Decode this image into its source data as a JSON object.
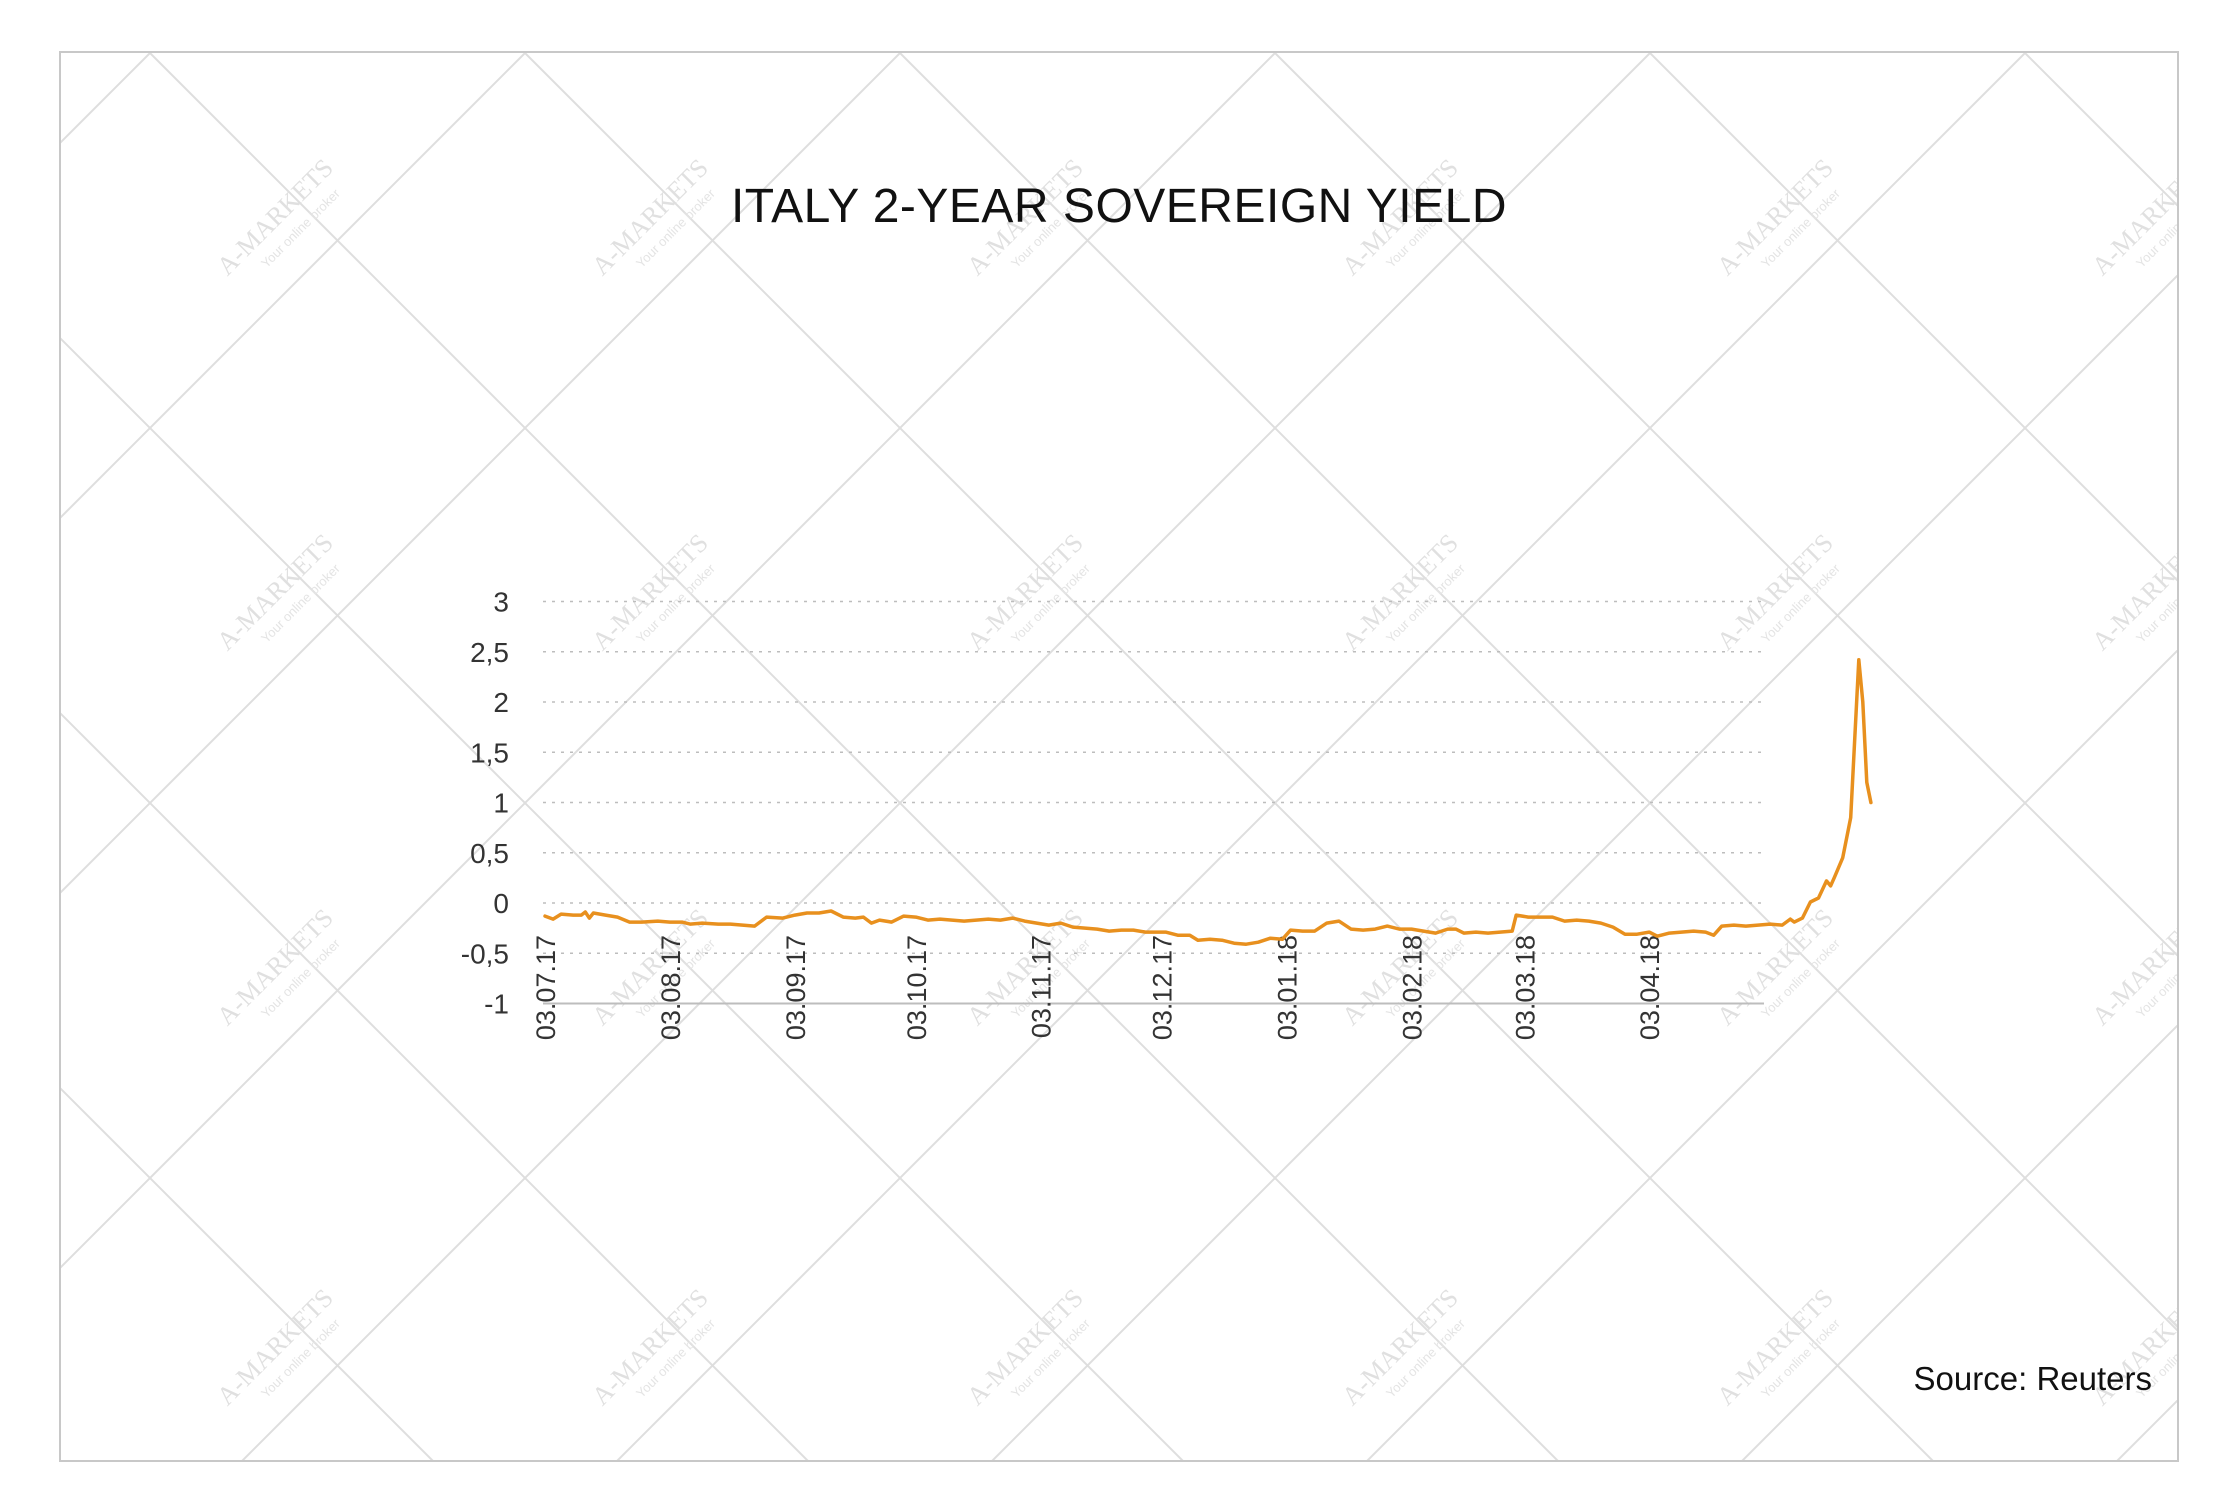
{
  "chart_data": {
    "type": "line",
    "title": "ITALY 2-YEAR SOVEREIGN YIELD",
    "xlabel": "",
    "ylabel": "",
    "ylim": [
      -1,
      3
    ],
    "y_ticks": [
      "3",
      "2,5",
      "2",
      "1,5",
      "1",
      "0,5",
      "0",
      "-0,5",
      "-1"
    ],
    "x_tick_labels": [
      "03.07.17",
      "03.08.17",
      "03.09.17",
      "03.10.17",
      "03.11.17",
      "03.12.17",
      "03.01.18",
      "03.02.18",
      "03.03.18",
      "03.04.18"
    ],
    "grid": true,
    "legend": "none",
    "series_color": "#E8901E",
    "series": [
      {
        "values": [
          [
            "2017-07-03",
            -0.13
          ],
          [
            "2017-07-05",
            -0.16
          ],
          [
            "2017-07-07",
            -0.11
          ],
          [
            "2017-07-10",
            -0.12
          ],
          [
            "2017-07-12",
            -0.12
          ],
          [
            "2017-07-13",
            -0.09
          ],
          [
            "2017-07-14",
            -0.15
          ],
          [
            "2017-07-15",
            -0.1
          ],
          [
            "2017-07-18",
            -0.12
          ],
          [
            "2017-07-21",
            -0.14
          ],
          [
            "2017-07-24",
            -0.19
          ],
          [
            "2017-07-27",
            -0.19
          ],
          [
            "2017-07-31",
            -0.18
          ],
          [
            "2017-08-03",
            -0.19
          ],
          [
            "2017-08-06",
            -0.19
          ],
          [
            "2017-08-08",
            -0.21
          ],
          [
            "2017-08-11",
            -0.2
          ],
          [
            "2017-08-15",
            -0.21
          ],
          [
            "2017-08-18",
            -0.21
          ],
          [
            "2017-08-21",
            -0.22
          ],
          [
            "2017-08-24",
            -0.23
          ],
          [
            "2017-08-27",
            -0.14
          ],
          [
            "2017-08-31",
            -0.15
          ],
          [
            "2017-09-03",
            -0.12
          ],
          [
            "2017-09-06",
            -0.1
          ],
          [
            "2017-09-09",
            -0.1
          ],
          [
            "2017-09-12",
            -0.08
          ],
          [
            "2017-09-15",
            -0.14
          ],
          [
            "2017-09-18",
            -0.15
          ],
          [
            "2017-09-20",
            -0.14
          ],
          [
            "2017-09-22",
            -0.2
          ],
          [
            "2017-09-24",
            -0.17
          ],
          [
            "2017-09-27",
            -0.19
          ],
          [
            "2017-09-30",
            -0.13
          ],
          [
            "2017-10-03",
            -0.14
          ],
          [
            "2017-10-06",
            -0.17
          ],
          [
            "2017-10-09",
            -0.16
          ],
          [
            "2017-10-12",
            -0.17
          ],
          [
            "2017-10-15",
            -0.18
          ],
          [
            "2017-10-18",
            -0.17
          ],
          [
            "2017-10-21",
            -0.16
          ],
          [
            "2017-10-24",
            -0.17
          ],
          [
            "2017-10-27",
            -0.15
          ],
          [
            "2017-10-30",
            -0.18
          ],
          [
            "2017-11-02",
            -0.2
          ],
          [
            "2017-11-05",
            -0.22
          ],
          [
            "2017-11-08",
            -0.2
          ],
          [
            "2017-11-11",
            -0.24
          ],
          [
            "2017-11-14",
            -0.25
          ],
          [
            "2017-11-17",
            -0.26
          ],
          [
            "2017-11-20",
            -0.28
          ],
          [
            "2017-11-23",
            -0.27
          ],
          [
            "2017-11-26",
            -0.27
          ],
          [
            "2017-11-29",
            -0.29
          ],
          [
            "2017-12-01",
            -0.29
          ],
          [
            "2017-12-04",
            -0.29
          ],
          [
            "2017-12-07",
            -0.32
          ],
          [
            "2017-12-10",
            -0.32
          ],
          [
            "2017-12-12",
            -0.37
          ],
          [
            "2017-12-15",
            -0.36
          ],
          [
            "2017-12-18",
            -0.37
          ],
          [
            "2017-12-21",
            -0.4
          ],
          [
            "2017-12-24",
            -0.41
          ],
          [
            "2017-12-27",
            -0.39
          ],
          [
            "2017-12-30",
            -0.35
          ],
          [
            "2018-01-02",
            -0.36
          ],
          [
            "2018-01-04",
            -0.27
          ],
          [
            "2018-01-07",
            -0.28
          ],
          [
            "2018-01-10",
            -0.28
          ],
          [
            "2018-01-13",
            -0.2
          ],
          [
            "2018-01-16",
            -0.18
          ],
          [
            "2018-01-19",
            -0.26
          ],
          [
            "2018-01-22",
            -0.27
          ],
          [
            "2018-01-25",
            -0.26
          ],
          [
            "2018-01-28",
            -0.23
          ],
          [
            "2018-01-31",
            -0.26
          ],
          [
            "2018-02-03",
            -0.26
          ],
          [
            "2018-02-06",
            -0.28
          ],
          [
            "2018-02-09",
            -0.3
          ],
          [
            "2018-02-12",
            -0.26
          ],
          [
            "2018-02-14",
            -0.26
          ],
          [
            "2018-02-16",
            -0.3
          ],
          [
            "2018-02-19",
            -0.29
          ],
          [
            "2018-02-22",
            -0.3
          ],
          [
            "2018-02-25",
            -0.29
          ],
          [
            "2018-02-28",
            -0.28
          ],
          [
            "2018-03-01",
            -0.12
          ],
          [
            "2018-03-04",
            -0.14
          ],
          [
            "2018-03-07",
            -0.14
          ],
          [
            "2018-03-10",
            -0.14
          ],
          [
            "2018-03-13",
            -0.18
          ],
          [
            "2018-03-16",
            -0.17
          ],
          [
            "2018-03-19",
            -0.18
          ],
          [
            "2018-03-22",
            -0.2
          ],
          [
            "2018-03-25",
            -0.24
          ],
          [
            "2018-03-28",
            -0.31
          ],
          [
            "2018-03-31",
            -0.31
          ],
          [
            "2018-04-03",
            -0.29
          ],
          [
            "2018-04-05",
            -0.33
          ],
          [
            "2018-04-08",
            -0.3
          ],
          [
            "2018-04-11",
            -0.29
          ],
          [
            "2018-04-14",
            -0.28
          ],
          [
            "2018-04-17",
            -0.29
          ],
          [
            "2018-04-19",
            -0.32
          ],
          [
            "2018-04-21",
            -0.23
          ],
          [
            "2018-04-24",
            -0.22
          ],
          [
            "2018-04-27",
            -0.23
          ],
          [
            "2018-04-30",
            -0.22
          ],
          [
            "2018-05-03",
            -0.21
          ],
          [
            "2018-05-06",
            -0.22
          ],
          [
            "2018-05-08",
            -0.16
          ],
          [
            "2018-05-09",
            -0.19
          ],
          [
            "2018-05-11",
            -0.15
          ],
          [
            "2018-05-13",
            0.01
          ],
          [
            "2018-05-15",
            0.05
          ],
          [
            "2018-05-17",
            0.22
          ],
          [
            "2018-05-18",
            0.17
          ],
          [
            "2018-05-19",
            0.26
          ],
          [
            "2018-05-21",
            0.45
          ],
          [
            "2018-05-23",
            0.85
          ],
          [
            "2018-05-25",
            2.42
          ],
          [
            "2018-05-26",
            2.0
          ],
          [
            "2018-05-27",
            1.2
          ],
          [
            "2018-05-28",
            1.0
          ]
        ]
      }
    ]
  },
  "chart": {
    "title": "ITALY 2-YEAR SOVEREIGN YIELD",
    "source": "Source: Reuters"
  },
  "watermark": {
    "brand": "A-MARKETS",
    "tagline": "Your online broker"
  }
}
